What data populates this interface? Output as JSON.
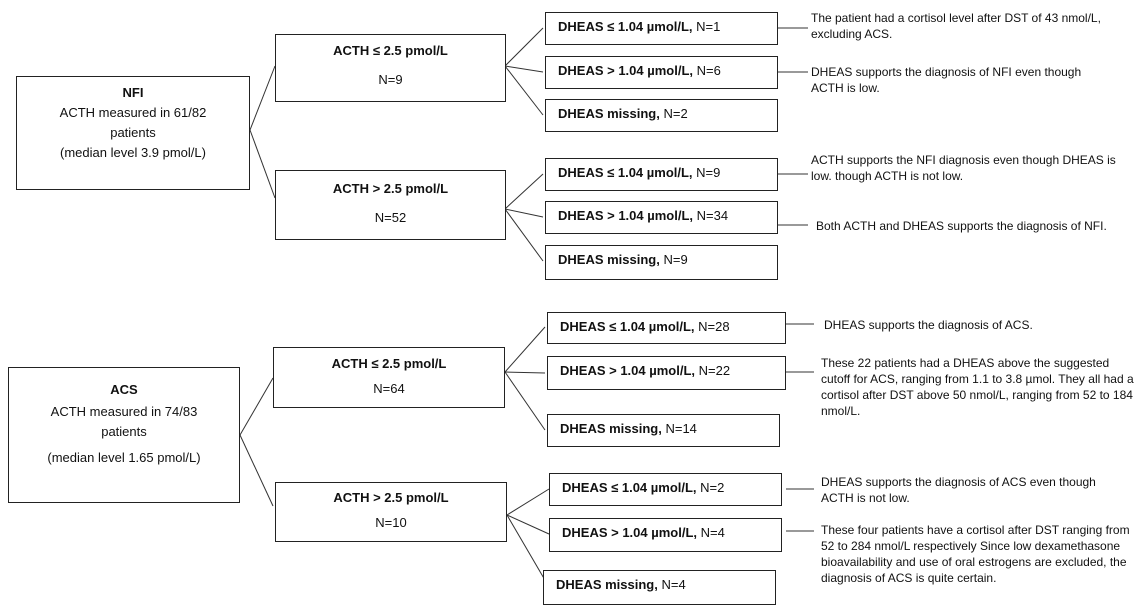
{
  "groups": [
    {
      "title": "NFI",
      "lines": [
        "ACTH measured in 61/82",
        "patients",
        "(median level 3.9 pmol/L)"
      ],
      "branches": [
        {
          "label": "ACTH ≤ 2.5 pmol/L",
          "n": "N=9",
          "leaves": [
            {
              "bold": "DHEAS  ≤ 1.04 µmol/L,",
              "n": " N=1"
            },
            {
              "bold": "DHEAS  > 1.04 µmol/L,",
              "n": " N=6"
            },
            {
              "bold": "DHEAS  missing,",
              "n": " N=2"
            }
          ]
        },
        {
          "label": "ACTH > 2.5 pmol/L",
          "n": "N=52",
          "leaves": [
            {
              "bold": "DHEAS  ≤ 1.04 µmol/L,",
              "n": " N=9"
            },
            {
              "bold": "DHEAS  > 1.04 µmol/L,",
              "n": " N=34"
            },
            {
              "bold": "DHEAS  missing,",
              "n": " N=9"
            }
          ]
        }
      ]
    },
    {
      "title": "ACS",
      "lines": [
        "ACTH measured in 74/83",
        "patients",
        "(median level 1.65 pmol/L)"
      ],
      "branches": [
        {
          "label": "ACTH ≤ 2.5 pmol/L",
          "n": "N=64",
          "leaves": [
            {
              "bold": "DHEAS  ≤ 1.04 µmol/L,",
              "n": " N=28"
            },
            {
              "bold": "DHEAS  > 1.04 µmol/L,",
              "n": " N=22"
            },
            {
              "bold": "DHEAS  missing,",
              "n": " N=14"
            }
          ]
        },
        {
          "label": "ACTH > 2.5 pmol/L",
          "n": "N=10",
          "leaves": [
            {
              "bold": "DHEAS  ≤ 1.04 µmol/L,",
              "n": " N=2"
            },
            {
              "bold": "DHEAS  > 1.04 µmol/L,",
              "n": " N=4"
            },
            {
              "bold": "DHEAS  missing,",
              "n": " N=4"
            }
          ]
        }
      ]
    }
  ],
  "notes": [
    "The patient had a cortisol level after DST of 43 nmol/L, excluding ACS.",
    "DHEAS supports the diagnosis of NFI even though ACTH is low.",
    "ACTH supports the NFI diagnosis even though DHEAS is low. though ACTH is not low.",
    "Both ACTH and DHEAS supports the diagnosis of NFI.",
    "DHEAS supports the diagnosis of ACS.",
    "These 22 patients had a DHEAS above the suggested cutoff for ACS, ranging from 1.1 to 3.8 µmol. They all had a cortisol after DST above 50 nmol/L, ranging from 52 to 184 nmol/L.",
    "DHEAS supports the diagnosis of ACS even though ACTH is not low.",
    "These four patients have a cortisol after DST ranging from 52 to 284 nmol/L respectively Since low dexamethasone bioavailability and use of oral estrogens are excluded, the diagnosis of ACS is quite certain."
  ]
}
